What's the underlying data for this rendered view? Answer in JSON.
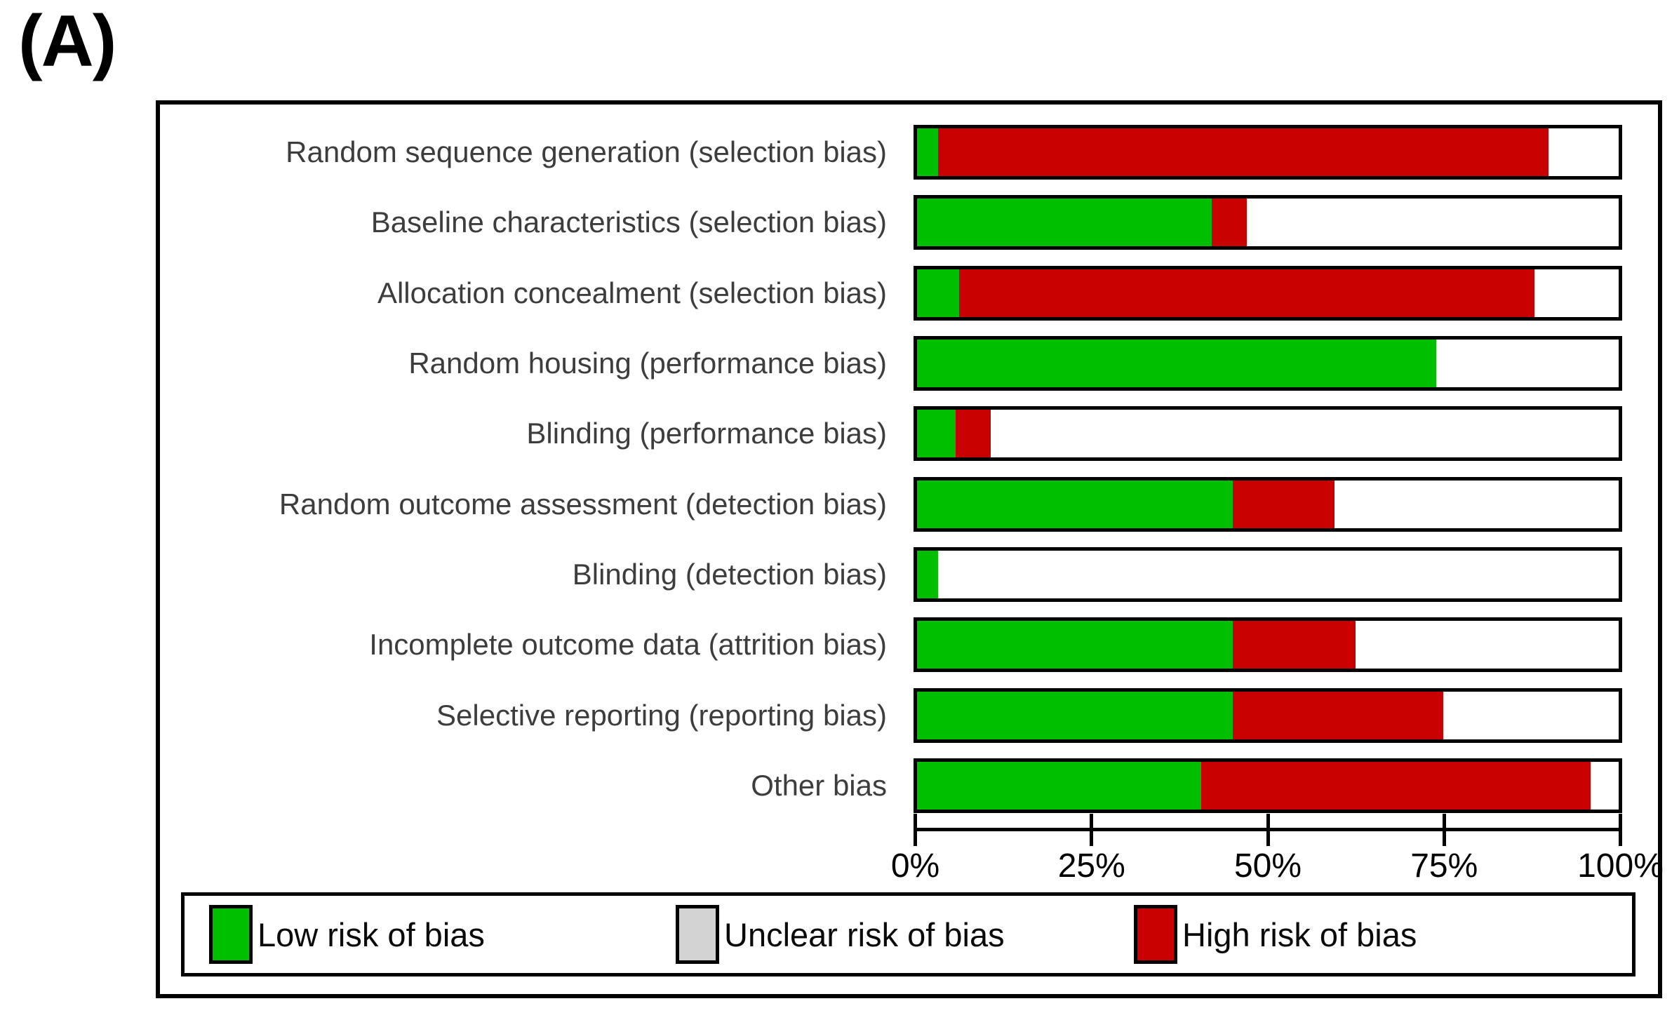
{
  "panel_label": "(A)",
  "colors": {
    "low": "#00bf00",
    "high": "#c80000",
    "unclear_swatch": "#d3d3d3",
    "bar_remainder": "#ffffff",
    "border": "#000000",
    "row_label_text": "#3d3d3d"
  },
  "axis": {
    "tick_labels": [
      "0%",
      "25%",
      "50%",
      "75%",
      "100%"
    ]
  },
  "legend": {
    "items": [
      {
        "id": "low",
        "label": "Low risk of bias",
        "swatch_color": "#00bf00"
      },
      {
        "id": "unclear",
        "label": "Unclear risk of bias",
        "swatch_color": "#d3d3d3"
      },
      {
        "id": "high",
        "label": "High risk of bias",
        "swatch_color": "#c80000"
      }
    ]
  },
  "chart_data": {
    "type": "bar",
    "orientation": "horizontal",
    "stacked": true,
    "title": "",
    "xlabel": "",
    "ylabel": "",
    "xlim": [
      0,
      100
    ],
    "x_ticks": [
      "0%",
      "25%",
      "50%",
      "75%",
      "100%"
    ],
    "grid": false,
    "legend_position": "bottom",
    "categories": [
      "Random sequence generation (selection bias)",
      "Baseline characteristics (selection bias)",
      "Allocation concealment (selection bias)",
      "Random housing (performance bias)",
      "Blinding (performance bias)",
      "Random outcome assessment (detection bias)",
      "Blinding (detection bias)",
      "Incomplete outcome data (attrition bias)",
      "Selective reporting (reporting bias)",
      "Other bias"
    ],
    "series": [
      {
        "name": "Low risk of bias",
        "color": "#00bf00",
        "values": [
          3,
          42,
          6,
          74,
          5.5,
          45,
          3,
          45,
          45,
          40.5
        ]
      },
      {
        "name": "Unclear risk of bias",
        "color": "#ffffff",
        "values": [
          10,
          53,
          12,
          26,
          89.5,
          40.5,
          97,
          37.5,
          25,
          4
        ]
      },
      {
        "name": "High risk of bias",
        "color": "#c80000",
        "values": [
          87,
          5,
          82,
          0,
          5,
          14.5,
          0,
          17.5,
          30,
          55.5
        ]
      }
    ]
  }
}
